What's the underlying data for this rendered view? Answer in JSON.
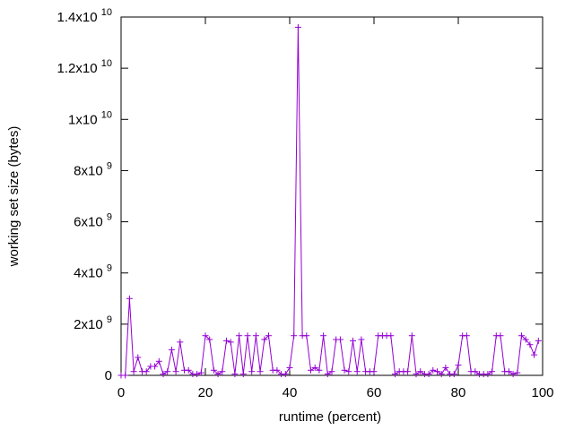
{
  "chart_data": {
    "type": "line",
    "title": "",
    "xlabel": "runtime (percent)",
    "ylabel": "working set size (bytes)",
    "xlim": [
      0,
      100
    ],
    "ylim": [
      0,
      14000000000
    ],
    "x_ticks": [
      "0",
      "20",
      "40",
      "60",
      "80",
      "100"
    ],
    "y_ticks": [
      {
        "value": 0,
        "mantissa": "0",
        "exponent": ""
      },
      {
        "value": 2000000000,
        "mantissa": "2x10",
        "exponent": "9"
      },
      {
        "value": 4000000000,
        "mantissa": "4x10",
        "exponent": "9"
      },
      {
        "value": 6000000000,
        "mantissa": "6x10",
        "exponent": "9"
      },
      {
        "value": 8000000000,
        "mantissa": "8x10",
        "exponent": "9"
      },
      {
        "value": 10000000000,
        "mantissa": "1x10",
        "exponent": "10"
      },
      {
        "value": 12000000000,
        "mantissa": "1.2x10",
        "exponent": "10"
      },
      {
        "value": 14000000000,
        "mantissa": "1.4x10",
        "exponent": "10"
      }
    ],
    "marker": "plus",
    "line_color": "#9400d3",
    "grid": false,
    "series": [
      {
        "x": [
          0,
          1,
          2,
          3,
          4,
          5,
          6,
          7,
          8,
          9,
          10,
          11,
          12,
          13,
          14,
          15,
          16,
          17,
          18,
          19,
          20,
          21,
          22,
          23,
          24,
          25,
          26,
          27,
          28,
          29,
          30,
          31,
          32,
          33,
          34,
          35,
          36,
          37,
          38,
          39,
          40,
          41,
          42,
          43,
          44,
          45,
          46,
          47,
          48,
          49,
          50,
          51,
          52,
          53,
          54,
          55,
          56,
          57,
          58,
          59,
          60,
          61,
          62,
          63,
          64,
          65,
          66,
          67,
          68,
          69,
          70,
          71,
          72,
          73,
          74,
          75,
          76,
          77,
          78,
          79,
          80,
          81,
          82,
          83,
          84,
          85,
          86,
          87,
          88,
          89,
          90,
          91,
          92,
          93,
          94,
          95,
          96,
          97,
          98,
          99
        ],
        "y": [
          0,
          0,
          3000000000,
          150000000,
          700000000,
          150000000,
          150000000,
          350000000,
          350000000,
          550000000,
          50000000,
          150000000,
          1000000000,
          150000000,
          1300000000,
          200000000,
          200000000,
          50000000,
          50000000,
          100000000,
          1550000000,
          1400000000,
          200000000,
          50000000,
          150000000,
          1350000000,
          1300000000,
          50000000,
          1550000000,
          50000000,
          1550000000,
          150000000,
          1550000000,
          150000000,
          1400000000,
          1550000000,
          200000000,
          200000000,
          50000000,
          50000000,
          300000000,
          1550000000,
          13600000000,
          1550000000,
          1550000000,
          200000000,
          300000000,
          200000000,
          1550000000,
          50000000,
          150000000,
          1400000000,
          1400000000,
          200000000,
          150000000,
          1350000000,
          150000000,
          1400000000,
          150000000,
          150000000,
          150000000,
          1550000000,
          1550000000,
          1550000000,
          1550000000,
          50000000,
          150000000,
          150000000,
          150000000,
          1550000000,
          50000000,
          150000000,
          50000000,
          50000000,
          200000000,
          150000000,
          50000000,
          300000000,
          50000000,
          50000000,
          400000000,
          1550000000,
          1550000000,
          150000000,
          150000000,
          50000000,
          50000000,
          50000000,
          150000000,
          1550000000,
          1550000000,
          150000000,
          150000000,
          50000000,
          100000000,
          1550000000,
          1400000000,
          1200000000,
          800000000,
          1350000000
        ]
      }
    ]
  }
}
